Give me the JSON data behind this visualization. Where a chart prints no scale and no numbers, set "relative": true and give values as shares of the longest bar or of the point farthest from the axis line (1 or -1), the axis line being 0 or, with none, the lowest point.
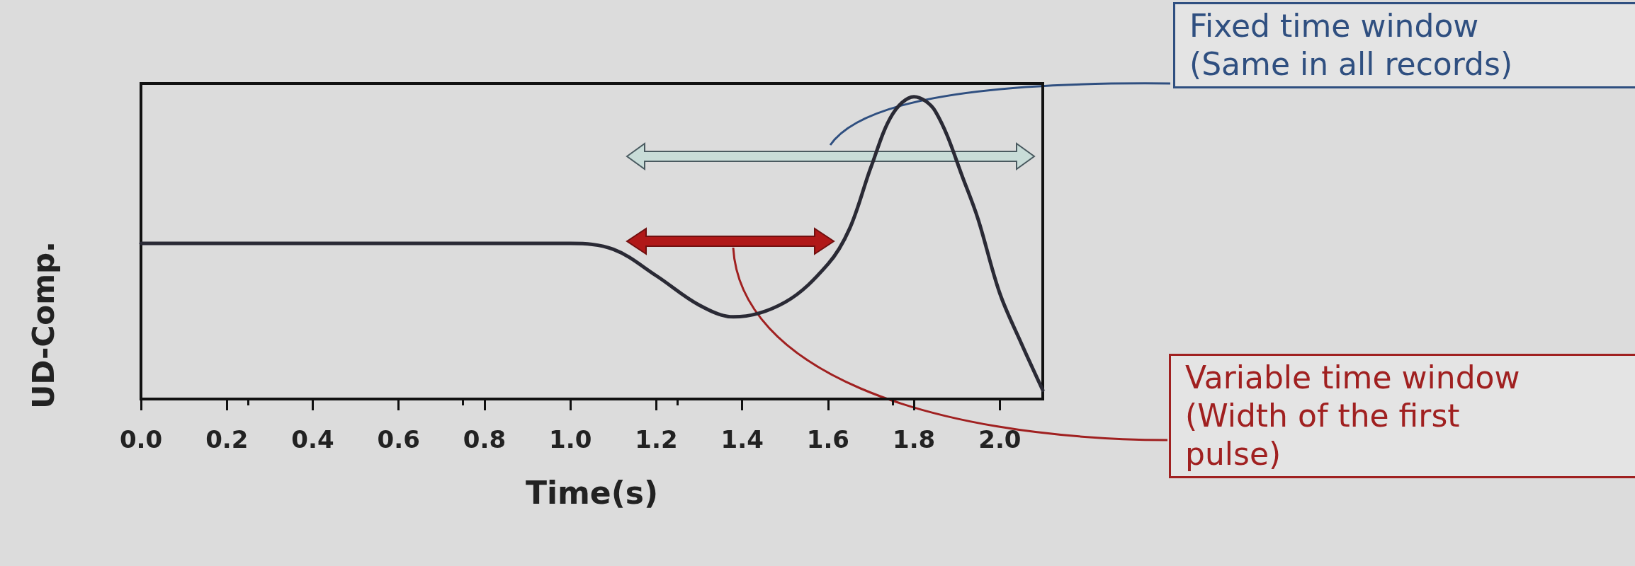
{
  "chart_data": {
    "type": "line",
    "relative": true,
    "xlabel": "Time(s)",
    "ylabel": "UD-Comp.",
    "color": "#2a2a35",
    "marker": "none",
    "grid": false,
    "xlim": [
      0,
      2.1
    ],
    "xticks": [
      {
        "value": 0,
        "label": "0.0"
      },
      {
        "value": 0.2,
        "label": "0.2"
      },
      {
        "value": 0.4,
        "label": "0.4"
      },
      {
        "value": 0.6,
        "label": "0.6"
      },
      {
        "value": 0.8,
        "label": "0.8"
      },
      {
        "value": 1,
        "label": "1.0"
      },
      {
        "value": 1.2,
        "label": "1.2"
      },
      {
        "value": 1.4,
        "label": "1.4"
      },
      {
        "value": 1.6,
        "label": "1.6"
      },
      {
        "value": 1.8,
        "label": "1.8"
      },
      {
        "value": 2,
        "label": "2.0"
      }
    ],
    "x": [
      0,
      0.5,
      1.0,
      1.1,
      1.2,
      1.3,
      1.38,
      1.5,
      1.6,
      1.65,
      1.7,
      1.75,
      1.8,
      1.85,
      1.92,
      1.95,
      2.0,
      2.05,
      2.1
    ],
    "values": [
      0.5,
      0.5,
      0.5,
      0.48,
      0.39,
      0.29,
      0.25,
      0.3,
      0.43,
      0.55,
      0.76,
      0.94,
      1,
      0.95,
      0.7,
      0.58,
      0.33,
      0.16,
      0
    ],
    "annotations": [
      "Fixed time window\n(Same in all records)",
      "Variable time window\n(Width of the first\npulse)"
    ]
  }
}
